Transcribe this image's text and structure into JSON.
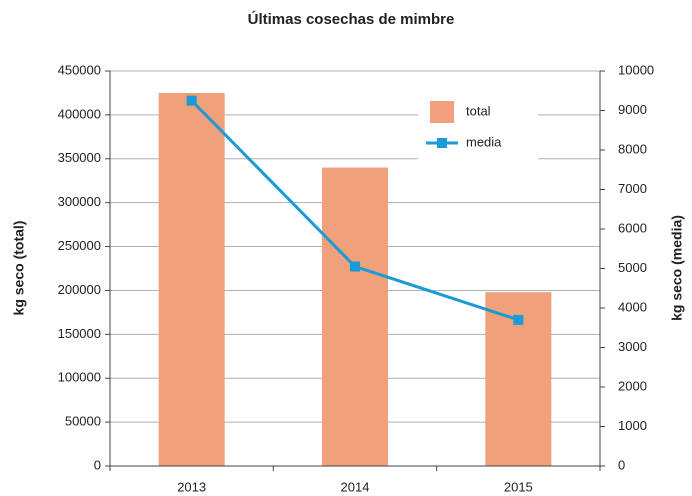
{
  "chart_data": {
    "type": "bar-line",
    "title": "Últimas cosechas de mimbre",
    "categories": [
      "2013",
      "2014",
      "2015"
    ],
    "y_label": "kg seco (total)",
    "y2_label": "kg seco (media)",
    "series": [
      {
        "name": "total",
        "type": "bar",
        "color": "#f0a07a",
        "values": [
          425000,
          340000,
          198000
        ]
      },
      {
        "name": "media",
        "type": "line",
        "color": "#1a9ad6",
        "axis": "y2",
        "values": [
          9250,
          5050,
          3700
        ]
      }
    ],
    "ylim": [
      0,
      450000
    ],
    "yticks": [
      0,
      50000,
      100000,
      150000,
      200000,
      250000,
      300000,
      350000,
      400000,
      450000
    ],
    "y2lim": [
      0,
      10000
    ],
    "y2ticks": [
      0,
      1000,
      2000,
      3000,
      4000,
      5000,
      6000,
      7000,
      8000,
      9000,
      10000
    ],
    "grid": true,
    "legend": "top-right"
  }
}
